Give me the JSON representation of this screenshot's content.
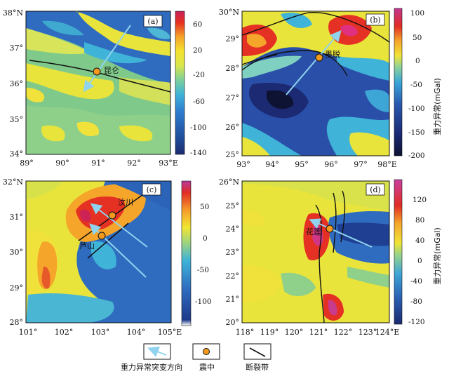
{
  "panels": [
    {
      "id": "a",
      "label": "(a)",
      "x_ticks": [
        "89°",
        "90°",
        "91°",
        "92°",
        "93°E"
      ],
      "y_ticks": [
        "38°N",
        "37°",
        "36°",
        "35°",
        "34°"
      ],
      "colorbar": {
        "ticks": [
          "60",
          "20",
          "-20",
          "-60",
          "-100",
          "-140"
        ],
        "unit": ""
      },
      "place": "昆仑"
    },
    {
      "id": "b",
      "label": "(b)",
      "x_ticks": [
        "93°",
        "94°",
        "95°",
        "96°",
        "97°",
        "98°E"
      ],
      "y_ticks": [
        "30°N",
        "29°",
        "28°",
        "27°",
        "26°",
        "25°"
      ],
      "colorbar": {
        "ticks": [
          "100",
          "50",
          "0",
          "-50",
          "-100",
          "-150",
          "-200"
        ],
        "unit": "重力异常(mGal)"
      },
      "place": "墨脱"
    },
    {
      "id": "c",
      "label": "(c)",
      "x_ticks": [
        "101°",
        "102°",
        "103°",
        "104°",
        "105°E"
      ],
      "y_ticks": [
        "32°N",
        "31°",
        "30°",
        "29°",
        "28°"
      ],
      "colorbar": {
        "ticks": [
          "50",
          "0",
          "-50",
          "-100"
        ],
        "unit": ""
      },
      "place": "汶川",
      "place2": "芦山"
    },
    {
      "id": "d",
      "label": "(d)",
      "x_ticks": [
        "118°",
        "119°",
        "120°",
        "121°",
        "122°",
        "123°",
        "124°E"
      ],
      "y_ticks": [
        "26°N",
        "25°",
        "24°",
        "23°",
        "22°",
        "21°",
        "20°"
      ],
      "colorbar": {
        "ticks": [
          "120",
          "80",
          "40",
          "0",
          "-40",
          "-80",
          "-120"
        ],
        "unit": "重力异常(mGal)"
      },
      "place": "花莲"
    }
  ],
  "legend": {
    "arrow_label": "重力异常突变方向",
    "epicenter_label": "震中",
    "fault_label": "断裂带"
  },
  "colors": {
    "arrow": "#8fd3ee",
    "epicenter": "#f39a1e",
    "background_blue": "#2f6bbf"
  }
}
